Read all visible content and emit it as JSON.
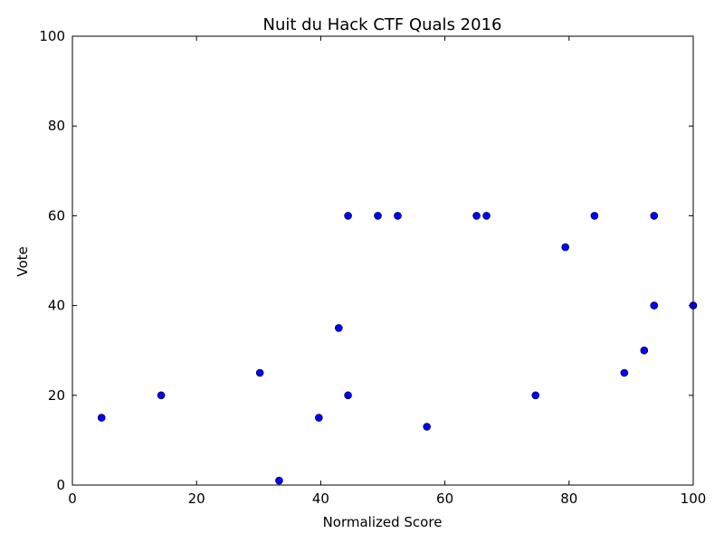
{
  "chart_data": {
    "type": "scatter",
    "title": "Nuit du Hack CTF Quals 2016",
    "xlabel": "Normalized Score",
    "ylabel": "Vote",
    "xlim": [
      0,
      100
    ],
    "ylim": [
      0,
      100
    ],
    "xticks": [
      "0",
      "20",
      "40",
      "60",
      "80",
      "100"
    ],
    "yticks": [
      "0",
      "20",
      "40",
      "60",
      "80",
      "100"
    ],
    "grid": false,
    "marker_color": "#0000ff",
    "points": [
      {
        "x": 4.7,
        "y": 15
      },
      {
        "x": 14.3,
        "y": 20
      },
      {
        "x": 30.2,
        "y": 25
      },
      {
        "x": 33.3,
        "y": 1
      },
      {
        "x": 39.7,
        "y": 15
      },
      {
        "x": 42.9,
        "y": 35
      },
      {
        "x": 44.4,
        "y": 20
      },
      {
        "x": 44.4,
        "y": 60
      },
      {
        "x": 49.2,
        "y": 60
      },
      {
        "x": 52.4,
        "y": 60
      },
      {
        "x": 57.1,
        "y": 13
      },
      {
        "x": 65.1,
        "y": 60
      },
      {
        "x": 66.7,
        "y": 60
      },
      {
        "x": 74.6,
        "y": 20
      },
      {
        "x": 79.4,
        "y": 53
      },
      {
        "x": 84.1,
        "y": 60
      },
      {
        "x": 88.9,
        "y": 25
      },
      {
        "x": 92.1,
        "y": 30
      },
      {
        "x": 93.7,
        "y": 40
      },
      {
        "x": 93.7,
        "y": 60
      },
      {
        "x": 100,
        "y": 40
      }
    ]
  }
}
